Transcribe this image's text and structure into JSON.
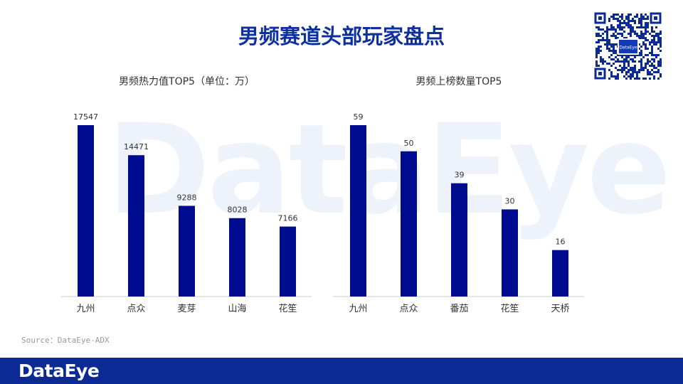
{
  "page_title": "男频赛道头部玩家盘点",
  "watermark_text": "DataEye",
  "qr_center_text": "DataEye",
  "source_note": "Source：DataEye-ADX",
  "footer": {
    "logo_text": "DataEye",
    "background_color": "#0b2a93"
  },
  "colors": {
    "bar": "#000c8f",
    "title": "#0d2f9f",
    "axis": "#cccccc"
  },
  "chart_data": [
    {
      "type": "bar",
      "title": "男频热力值TOP5（单位：万）",
      "categories": [
        "九州",
        "点众",
        "麦芽",
        "山海",
        "花笙"
      ],
      "values": [
        17547,
        14471,
        9288,
        8028,
        7166
      ],
      "ylim": [
        0,
        17547
      ],
      "grid": false,
      "legend": "none"
    },
    {
      "type": "bar",
      "title": "男频上榜数量TOP5",
      "categories": [
        "九州",
        "点众",
        "番茄",
        "花笙",
        "天桥"
      ],
      "values": [
        59,
        50,
        39,
        30,
        16
      ],
      "ylim": [
        0,
        59
      ],
      "grid": false,
      "legend": "none"
    }
  ]
}
